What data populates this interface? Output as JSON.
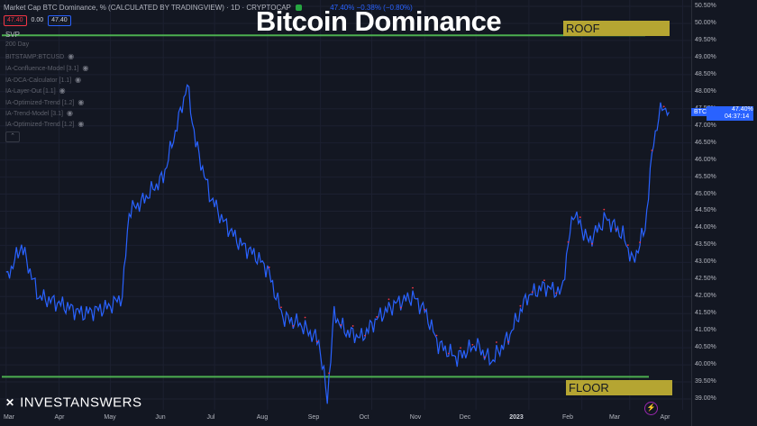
{
  "header": {
    "symbol_line": "Market Cap BTC Dominance, % (CALCULATED BY TRADINGVIEW) · 1D · CRYPTOCAP",
    "change_text": "47.40%  −0.38% (−0.80%)",
    "price_sell": "47.40",
    "spread": "0.00",
    "price_buy": "47.40",
    "svp_label": "SVP"
  },
  "indicators": [
    "200 Day",
    "BITSTAMP:BTCUSD",
    "IA-Confluence-Model [3.1]",
    "IA-DCA-Calculator [1.1]",
    "IA-Layer-Out [1.1]",
    "IA-Optimized-Trend [1.2]",
    "IA-Trend-Model [3.1]",
    "IA-Optimized-Trend [1.2]"
  ],
  "overlay": {
    "title": "Bitcoin Dominance",
    "roof_label": "ROOF",
    "floor_label": "FLOOR",
    "brand": "INVESTANSWERS"
  },
  "price_axis": {
    "ticks": [
      "50.50%",
      "50.00%",
      "49.50%",
      "49.00%",
      "48.50%",
      "48.00%",
      "47.50%",
      "47.00%",
      "46.50%",
      "46.00%",
      "45.50%",
      "45.00%",
      "44.50%",
      "44.00%",
      "43.50%",
      "43.00%",
      "42.50%",
      "42.00%",
      "41.50%",
      "41.00%",
      "40.50%",
      "40.00%",
      "39.50%",
      "39.00%"
    ],
    "symbol_badge": "BTC.D",
    "last_price": "47.40%",
    "countdown": "04:37:14"
  },
  "time_axis": {
    "labels": [
      "Mar",
      "Apr",
      "May",
      "Jun",
      "Jul",
      "Aug",
      "Sep",
      "Oct",
      "Nov",
      "Dec",
      "2023",
      "Feb",
      "Mar",
      "Apr"
    ]
  },
  "colors": {
    "background": "#131722",
    "line": "#2962ff",
    "level_lines": "#4caf50",
    "label_boxes": "#b5a532"
  },
  "chart_data": {
    "type": "line",
    "series": [
      {
        "x": [
          "2022-03-01",
          "2022-03-10",
          "2022-03-20",
          "2022-04-01",
          "2022-04-15",
          "2022-04-30",
          "2022-05-08",
          "2022-05-12",
          "2022-05-20",
          "2022-06-01",
          "2022-06-10",
          "2022-06-15",
          "2022-06-20",
          "2022-06-28",
          "2022-07-05",
          "2022-07-15",
          "2022-07-25",
          "2022-08-01",
          "2022-08-10",
          "2022-08-20",
          "2022-08-31",
          "2022-09-05",
          "2022-09-09",
          "2022-09-15",
          "2022-09-25",
          "2022-10-05",
          "2022-10-15",
          "2022-10-25",
          "2022-11-01",
          "2022-11-09",
          "2022-11-20",
          "2022-12-01",
          "2022-12-10",
          "2022-12-20",
          "2022-12-31",
          "2023-01-10",
          "2023-01-20",
          "2023-01-27",
          "2023-02-05",
          "2023-02-15",
          "2023-02-25",
          "2023-03-03",
          "2023-03-10",
          "2023-03-15",
          "2023-03-20",
          "2023-03-24"
        ],
        "values": [
          42.5,
          43.5,
          42.0,
          41.8,
          41.5,
          41.7,
          42.0,
          44.5,
          44.8,
          45.5,
          47.2,
          48.2,
          46.5,
          45.0,
          44.3,
          43.6,
          43.2,
          42.8,
          41.4,
          41.2,
          40.7,
          39.0,
          41.5,
          41.0,
          40.8,
          41.4,
          41.8,
          42.0,
          41.6,
          40.6,
          40.2,
          40.6,
          40.1,
          40.8,
          42.0,
          42.3,
          42.1,
          44.5,
          43.6,
          44.3,
          43.8,
          43.0,
          44.0,
          46.6,
          47.6,
          47.4
        ]
      }
    ],
    "ylim": [
      38.8,
      50.5
    ],
    "annotations": [
      {
        "label": "ROOF",
        "value": 49.65
      },
      {
        "label": "FLOOR",
        "value": 39.65
      }
    ],
    "grid": true
  }
}
